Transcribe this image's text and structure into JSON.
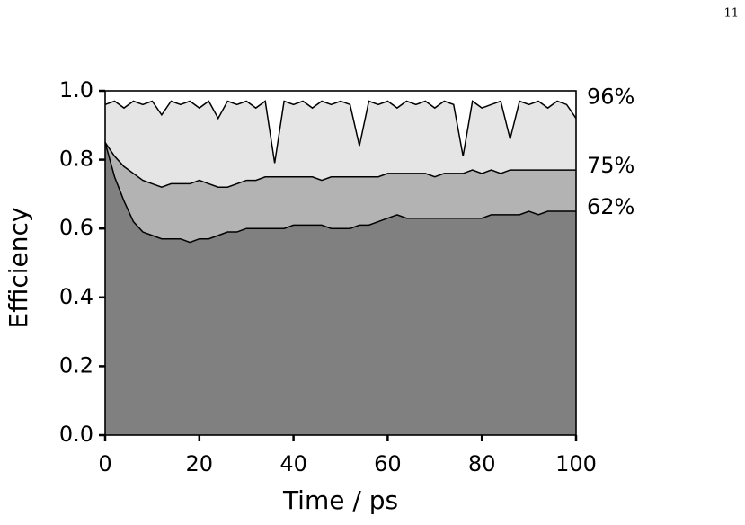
{
  "page_number": "11",
  "chart_data": {
    "type": "area",
    "xlabel": "Time / ps",
    "ylabel": "Efficiency",
    "x": [
      0,
      2,
      4,
      6,
      8,
      10,
      12,
      14,
      16,
      18,
      20,
      22,
      24,
      26,
      28,
      30,
      32,
      34,
      36,
      38,
      40,
      42,
      44,
      46,
      48,
      50,
      52,
      54,
      56,
      58,
      60,
      62,
      64,
      66,
      68,
      70,
      72,
      74,
      76,
      78,
      80,
      82,
      84,
      86,
      88,
      90,
      92,
      94,
      96,
      98,
      100
    ],
    "series": [
      {
        "label": "96%",
        "color": "#e5e5e5",
        "line_color": "#000000",
        "values": [
          0.96,
          0.97,
          0.95,
          0.97,
          0.96,
          0.97,
          0.93,
          0.97,
          0.96,
          0.97,
          0.95,
          0.97,
          0.92,
          0.97,
          0.96,
          0.97,
          0.95,
          0.97,
          0.79,
          0.97,
          0.96,
          0.97,
          0.95,
          0.97,
          0.96,
          0.97,
          0.96,
          0.84,
          0.97,
          0.96,
          0.97,
          0.95,
          0.97,
          0.96,
          0.97,
          0.95,
          0.97,
          0.96,
          0.81,
          0.97,
          0.95,
          0.96,
          0.97,
          0.86,
          0.97,
          0.96,
          0.97,
          0.95,
          0.97,
          0.96,
          0.92
        ]
      },
      {
        "label": "75%",
        "color": "#b3b3b3",
        "line_color": "#000000",
        "values": [
          0.85,
          0.81,
          0.78,
          0.76,
          0.74,
          0.73,
          0.72,
          0.73,
          0.73,
          0.73,
          0.74,
          0.73,
          0.72,
          0.72,
          0.73,
          0.74,
          0.74,
          0.75,
          0.75,
          0.75,
          0.75,
          0.75,
          0.75,
          0.74,
          0.75,
          0.75,
          0.75,
          0.75,
          0.75,
          0.75,
          0.76,
          0.76,
          0.76,
          0.76,
          0.76,
          0.75,
          0.76,
          0.76,
          0.76,
          0.77,
          0.76,
          0.77,
          0.76,
          0.77,
          0.77,
          0.77,
          0.77,
          0.77,
          0.77,
          0.77,
          0.77
        ]
      },
      {
        "label": "62%",
        "color": "#808080",
        "line_color": "#000000",
        "values": [
          0.85,
          0.75,
          0.68,
          0.62,
          0.59,
          0.58,
          0.57,
          0.57,
          0.57,
          0.56,
          0.57,
          0.57,
          0.58,
          0.59,
          0.59,
          0.6,
          0.6,
          0.6,
          0.6,
          0.6,
          0.61,
          0.61,
          0.61,
          0.61,
          0.6,
          0.6,
          0.6,
          0.61,
          0.61,
          0.62,
          0.63,
          0.64,
          0.63,
          0.63,
          0.63,
          0.63,
          0.63,
          0.63,
          0.63,
          0.63,
          0.63,
          0.64,
          0.64,
          0.64,
          0.64,
          0.65,
          0.64,
          0.65,
          0.65,
          0.65,
          0.65
        ]
      }
    ],
    "xlim": [
      0,
      100
    ],
    "xticks": [
      0,
      20,
      40,
      60,
      80,
      100
    ],
    "ylim": [
      0,
      1
    ],
    "yticks": [
      {
        "value": 0,
        "label": "0.0"
      },
      {
        "value": 0.2,
        "label": "0.2"
      },
      {
        "value": 0.4,
        "label": "0.4"
      },
      {
        "value": 0.6,
        "label": "0.6"
      },
      {
        "value": 0.8,
        "label": "0.8"
      },
      {
        "value": 1,
        "label": "1.0"
      }
    ]
  }
}
